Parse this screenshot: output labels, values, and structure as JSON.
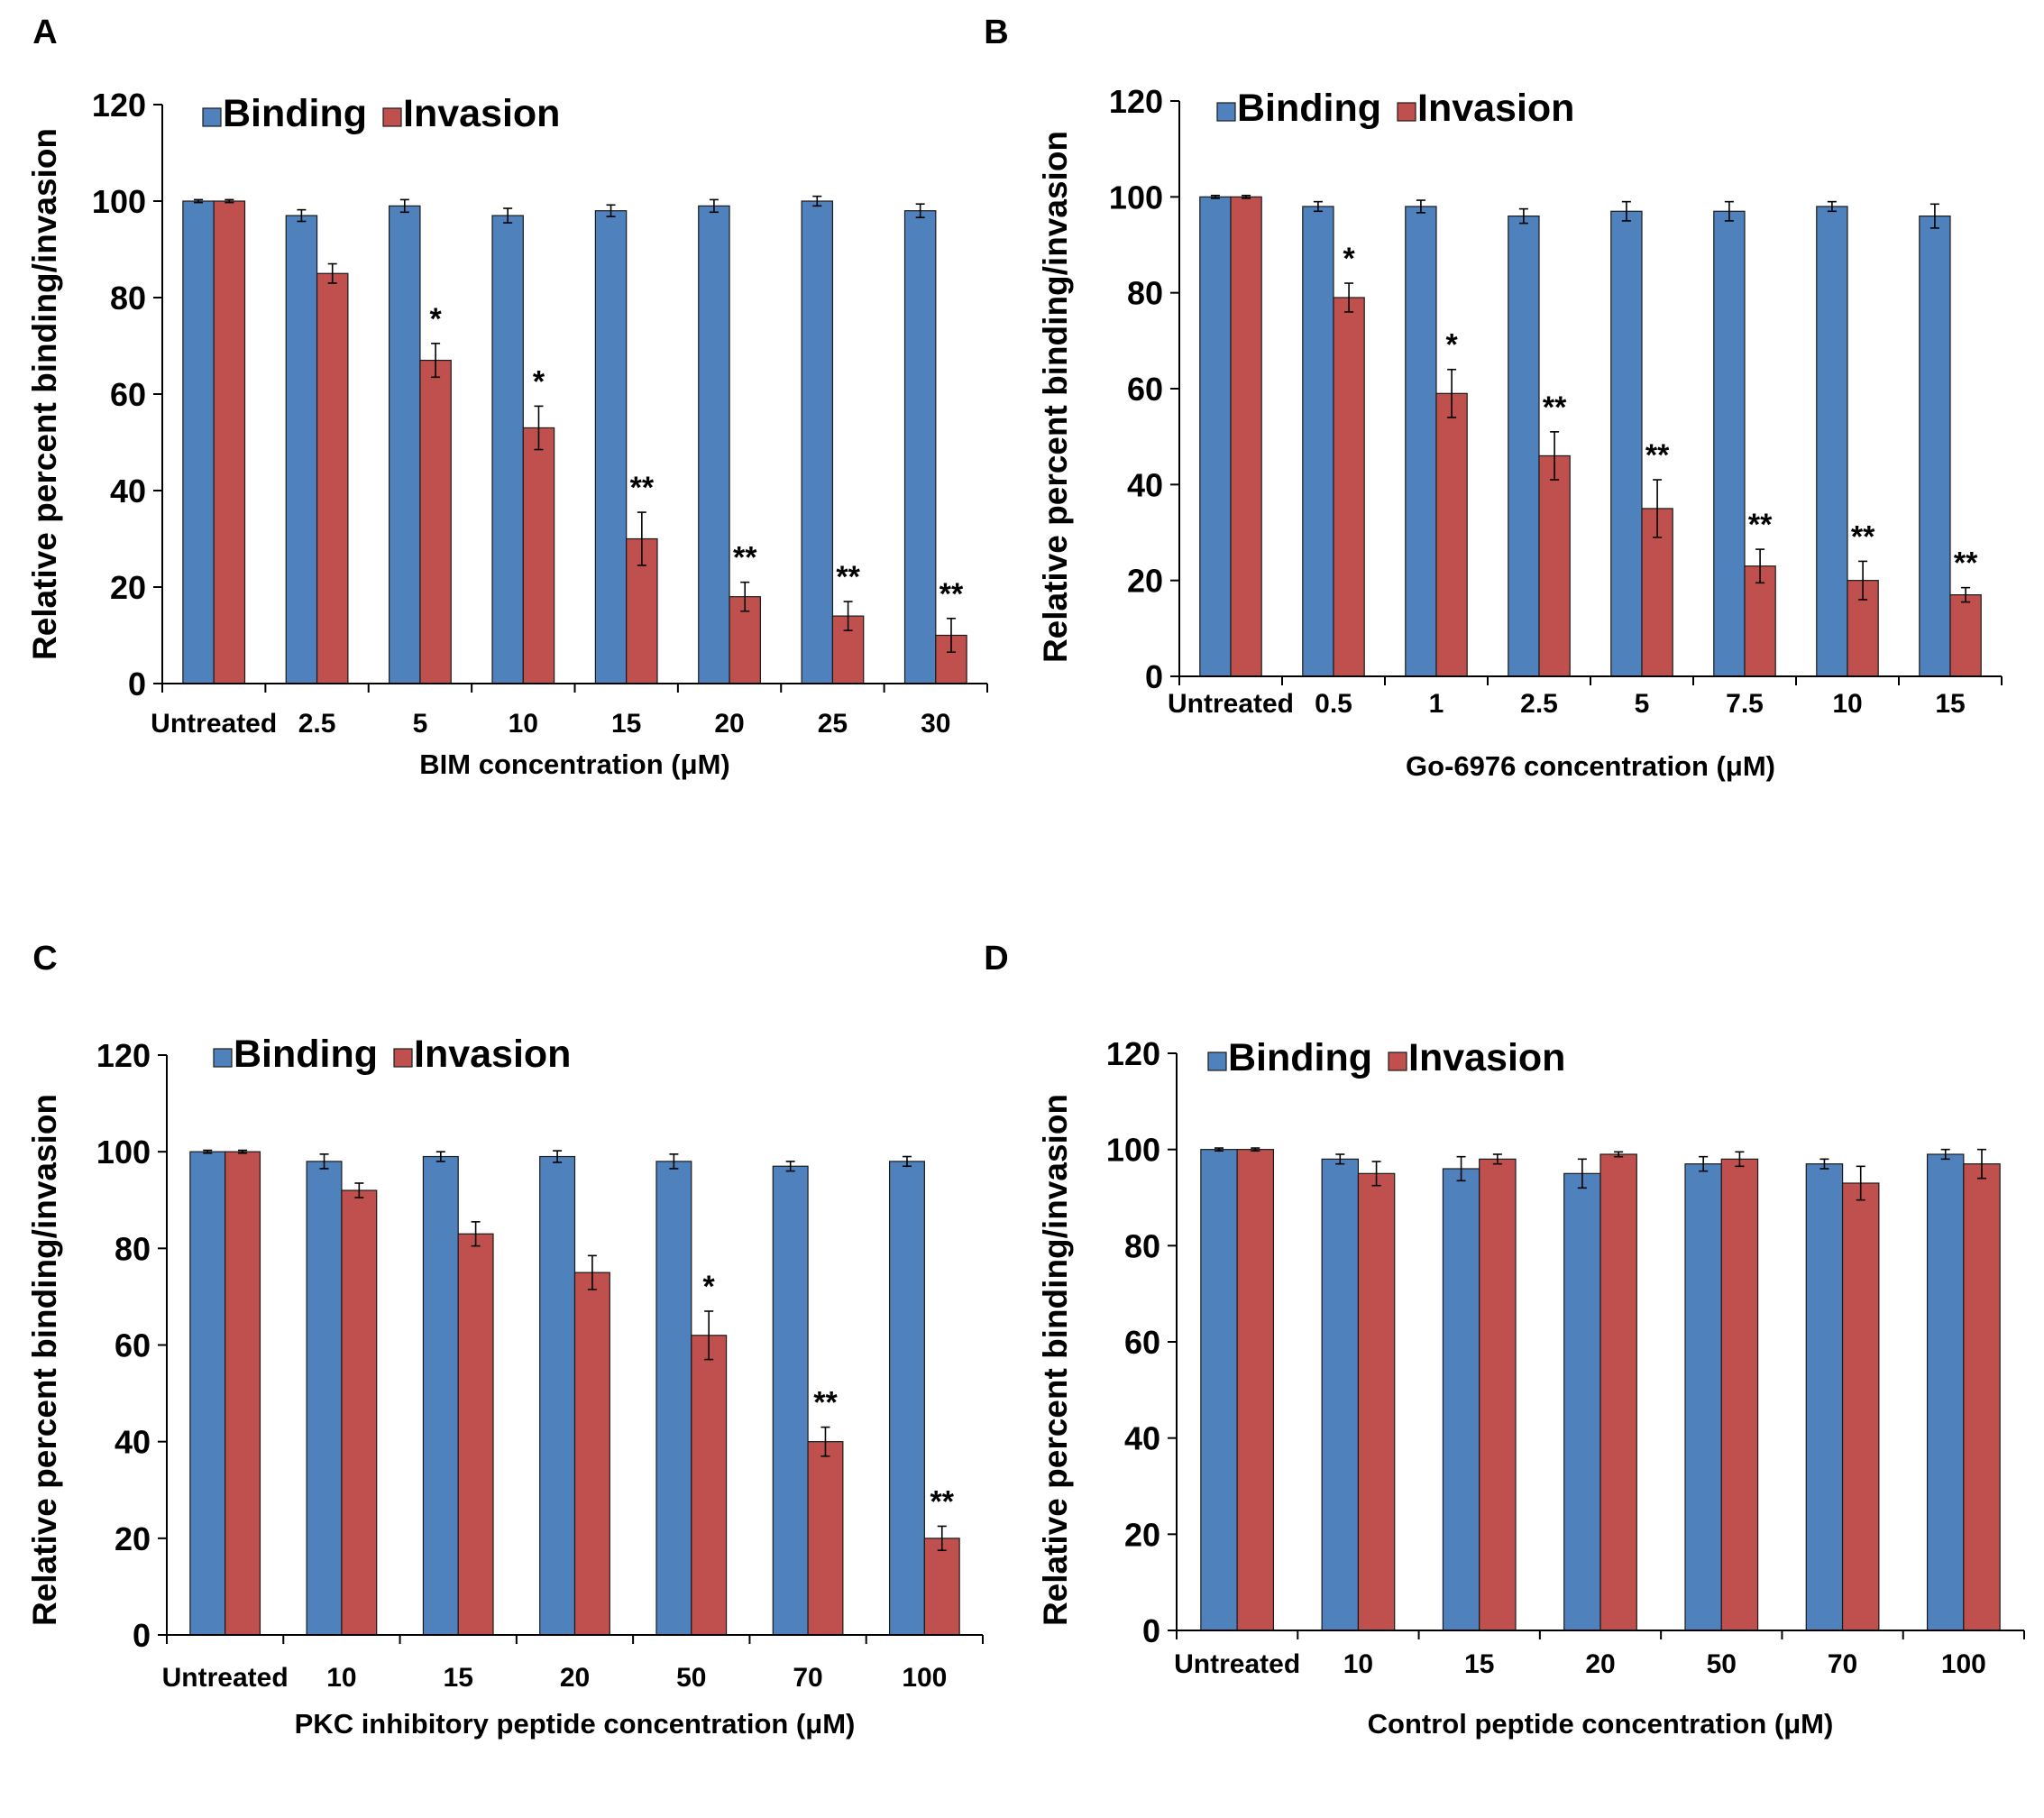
{
  "colors": {
    "binding": "#4f81bd",
    "invasion": "#c0504d",
    "axis": "#000000",
    "bar_edge": "#1a1a1a"
  },
  "chart_data": [
    {
      "panel": "A",
      "type": "bar",
      "ylabel": "Relative percent binding/invasion",
      "xlabel": "BIM concentration (μM)",
      "ylim": [
        0,
        120
      ],
      "yticks": [
        0,
        20,
        40,
        60,
        80,
        100,
        120
      ],
      "legend_position": "top-left",
      "categories": [
        "Untreated",
        "2.5",
        "5",
        "10",
        "15",
        "20",
        "25",
        "30"
      ],
      "series": [
        {
          "name": "Binding",
          "values": [
            100,
            97,
            99,
            97,
            98,
            99,
            100,
            98
          ],
          "errors": [
            0.3,
            1.2,
            1.3,
            1.5,
            1.2,
            1.3,
            1.0,
            1.4
          ]
        },
        {
          "name": "Invasion",
          "values": [
            100,
            85,
            67,
            53,
            30,
            18,
            14,
            10
          ],
          "errors": [
            0.3,
            2.0,
            3.5,
            4.5,
            5.5,
            3.0,
            3.0,
            3.5
          ]
        }
      ],
      "annotations": [
        "",
        "",
        "*",
        "*",
        "**",
        "**",
        "**",
        "**"
      ]
    },
    {
      "panel": "B",
      "type": "bar",
      "ylabel": "Relative percent binding/invasion",
      "xlabel": "Go-6976 concentration (μM)",
      "ylim": [
        0,
        120
      ],
      "yticks": [
        0,
        20,
        40,
        60,
        80,
        100,
        120
      ],
      "legend_position": "top-left",
      "categories": [
        "Untreated",
        "0.5",
        "1",
        "2.5",
        "5",
        "7.5",
        "10",
        "15"
      ],
      "series": [
        {
          "name": "Binding",
          "values": [
            100,
            98,
            98,
            96,
            97,
            97,
            98,
            96
          ],
          "errors": [
            0.3,
            1.0,
            1.3,
            1.5,
            2.0,
            2.0,
            1.0,
            2.5
          ]
        },
        {
          "name": "Invasion",
          "values": [
            100,
            79,
            59,
            46,
            35,
            23,
            20,
            17
          ],
          "errors": [
            0.3,
            3.0,
            5.0,
            5.0,
            6.0,
            3.5,
            4.0,
            1.5
          ]
        }
      ],
      "annotations": [
        "",
        "*",
        "*",
        "**",
        "**",
        "**",
        "**",
        "**"
      ]
    },
    {
      "panel": "C",
      "type": "bar",
      "ylabel": "Relative percent binding/invasion",
      "xlabel": "PKC inhibitory peptide concentration (μM)",
      "ylim": [
        0,
        120
      ],
      "yticks": [
        0,
        20,
        40,
        60,
        80,
        100,
        120
      ],
      "legend_position": "top-left",
      "categories": [
        "Untreated",
        "10",
        "15",
        "20",
        "50",
        "70",
        "100"
      ],
      "series": [
        {
          "name": "Binding",
          "values": [
            100,
            98,
            99,
            99,
            98,
            97,
            98
          ],
          "errors": [
            0.3,
            1.5,
            1.0,
            1.2,
            1.5,
            1.0,
            1.0
          ]
        },
        {
          "name": "Invasion",
          "values": [
            100,
            92,
            83,
            75,
            62,
            40,
            20
          ],
          "errors": [
            0.3,
            1.5,
            2.5,
            3.5,
            5.0,
            3.0,
            2.5
          ]
        }
      ],
      "annotations": [
        "",
        "",
        "",
        "",
        "*",
        "**",
        "**"
      ]
    },
    {
      "panel": "D",
      "type": "bar",
      "ylabel": "Relative percent binding/invasion",
      "xlabel": "Control peptide concentration (μM)",
      "ylim": [
        0,
        120
      ],
      "yticks": [
        0,
        20,
        40,
        60,
        80,
        100,
        120
      ],
      "legend_position": "top-left",
      "categories": [
        "Untreated",
        "10",
        "15",
        "20",
        "50",
        "70",
        "100"
      ],
      "series": [
        {
          "name": "Binding",
          "values": [
            100,
            98,
            96,
            95,
            97,
            97,
            99
          ],
          "errors": [
            0.3,
            1.0,
            2.5,
            3.0,
            1.5,
            1.0,
            1.0
          ]
        },
        {
          "name": "Invasion",
          "values": [
            100,
            95,
            98,
            99,
            98,
            93,
            97
          ],
          "errors": [
            0.3,
            2.5,
            1.0,
            0.5,
            1.5,
            3.5,
            3.0
          ]
        }
      ],
      "annotations": [
        "",
        "",
        "",
        "",
        "",
        "",
        ""
      ]
    }
  ]
}
